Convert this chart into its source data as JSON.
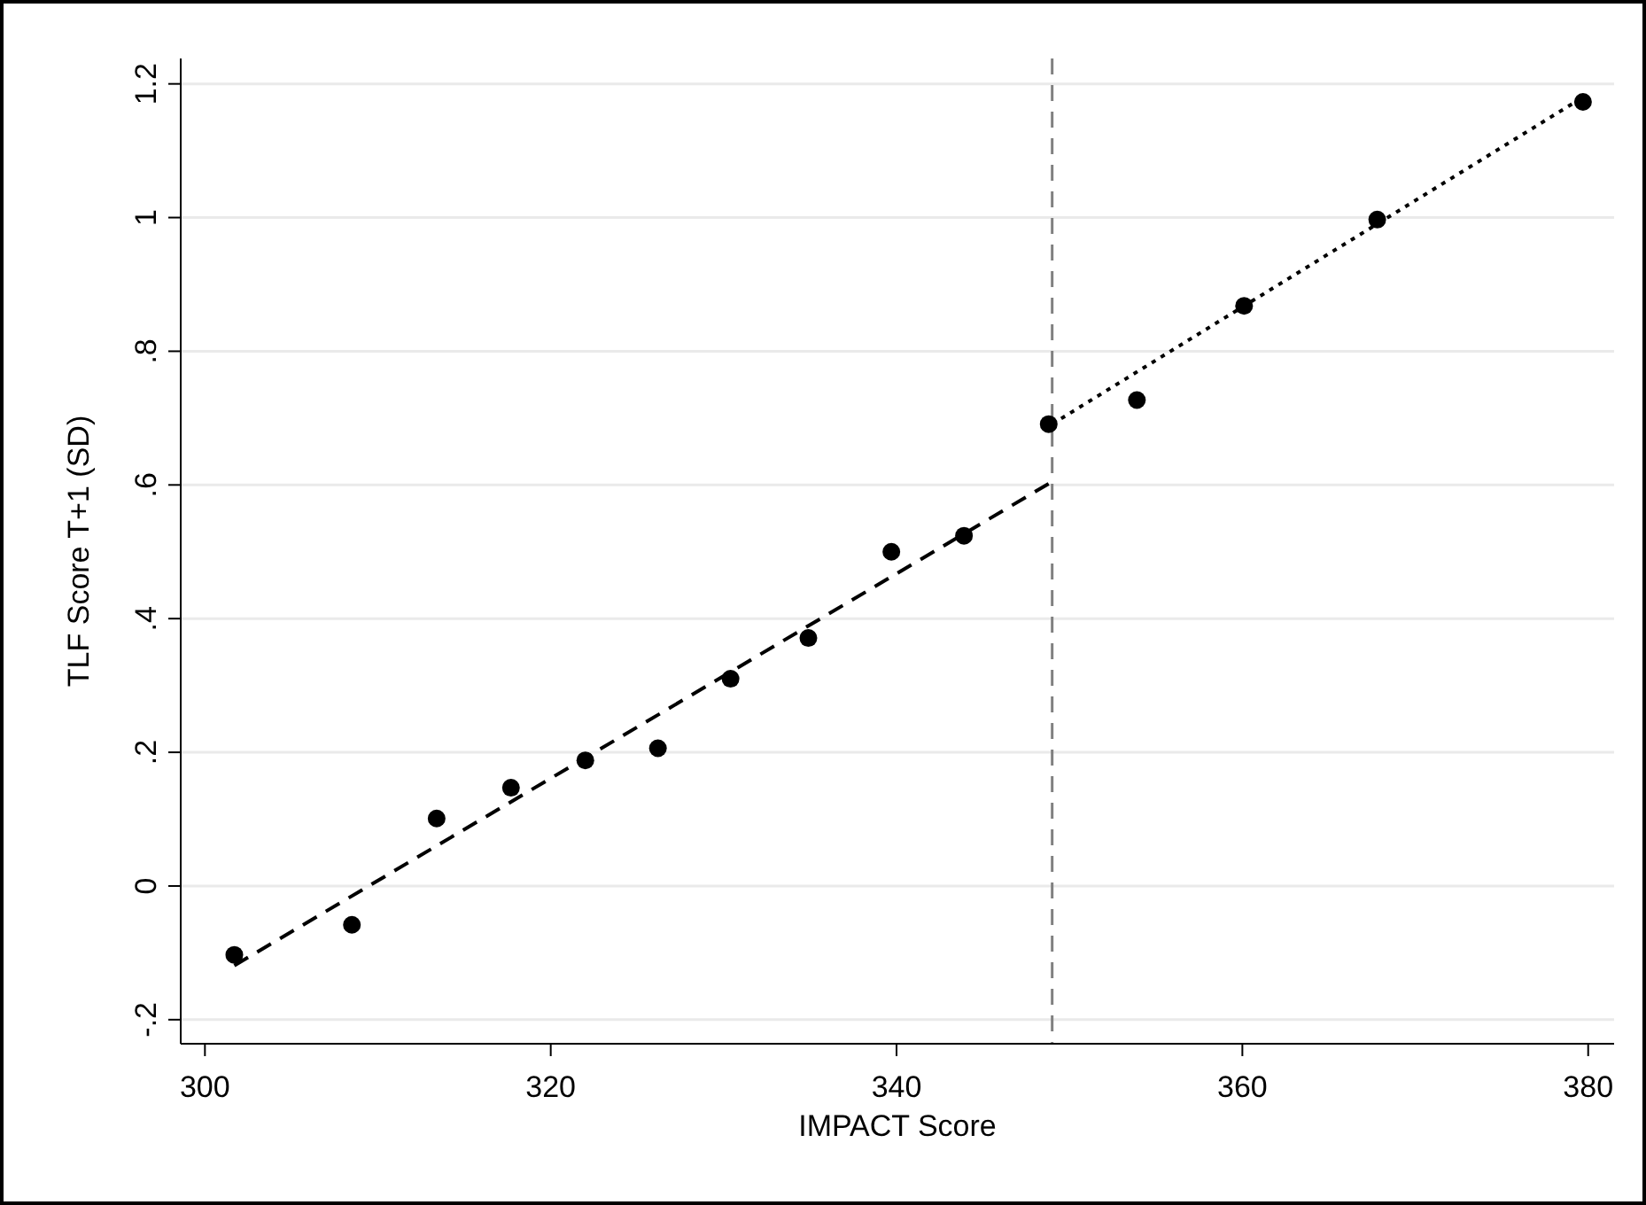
{
  "chart_data": {
    "type": "scatter",
    "xlabel": "IMPACT Score",
    "ylabel": "TLF Score T+1 (SD)",
    "xlim": [
      298.6,
      381.5
    ],
    "ylim": [
      -0.236,
      1.238
    ],
    "xticks": [
      300,
      320,
      340,
      360,
      380
    ],
    "yticks": [
      {
        "value": -0.2,
        "label": "-.2"
      },
      0,
      {
        "value": 0.2,
        "label": ".2"
      },
      {
        "value": 0.4,
        "label": ".4"
      },
      {
        "value": 0.6,
        "label": ".6"
      },
      {
        "value": 0.8,
        "label": ".8"
      },
      1,
      {
        "value": 1.2,
        "label": "1.2"
      }
    ],
    "grid": "y",
    "series": [
      {
        "marker": "circle",
        "color": "#000000",
        "x": [
          301.7,
          308.5,
          313.4,
          317.7,
          322.0,
          326.2,
          330.4,
          334.9,
          339.7,
          343.9,
          348.8,
          353.9,
          360.1,
          367.8,
          379.7
        ],
        "values": [
          -0.103,
          -0.058,
          0.101,
          0.147,
          0.188,
          0.206,
          0.31,
          0.371,
          0.5,
          0.524,
          0.691,
          0.727,
          0.868,
          0.997,
          1.173
        ]
      },
      {
        "type": "line",
        "marker": "none",
        "color": "#000000",
        "line_style": "dashed",
        "x": [
          301.7,
          349.0
        ],
        "values": [
          -0.119,
          0.605
        ]
      },
      {
        "type": "line",
        "marker": "none",
        "color": "#000000",
        "line_style": "dotted",
        "x": [
          349.0,
          379.7
        ],
        "values": [
          0.691,
          1.18
        ]
      }
    ],
    "ref_lines": [
      {
        "axis": "x",
        "value": 349.0,
        "color": "#808080",
        "line_style": "dashed"
      }
    ]
  }
}
